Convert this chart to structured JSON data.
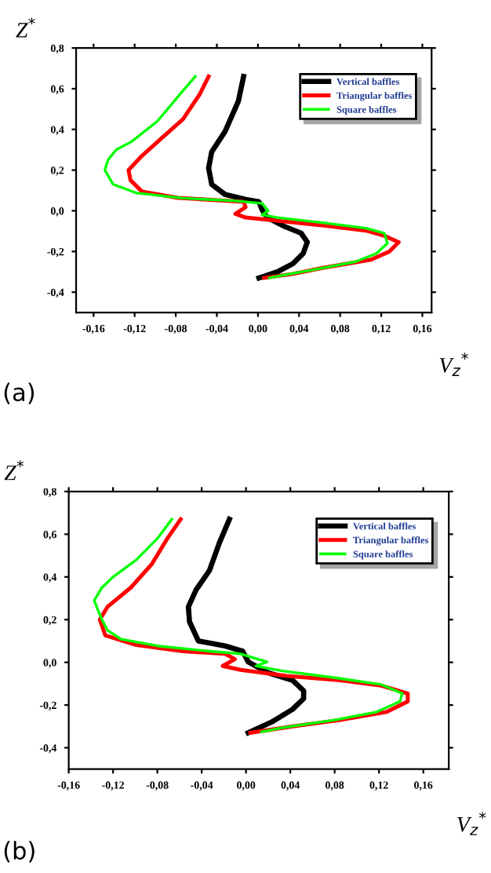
{
  "chart_data": [
    {
      "type": "line",
      "xlabel": "V$_{z}$$^{*}$",
      "ylabel": "Z$^{*}$",
      "annotations": [
        "(a)"
      ],
      "legend": "top right",
      "grid": false,
      "xlim": [
        -0.177,
        0.169
      ],
      "ylim": [
        -0.5,
        0.8
      ],
      "xticks": [
        {
          "value": -0.16,
          "label": "-0,16"
        },
        {
          "value": -0.12,
          "label": "-0,12"
        },
        {
          "value": -0.08,
          "label": "-0,08"
        },
        {
          "value": -0.04,
          "label": "-0,04"
        },
        {
          "value": 0,
          "label": "0,00"
        },
        {
          "value": 0.04,
          "label": "0,04"
        },
        {
          "value": 0.08,
          "label": "0,08"
        },
        {
          "value": 0.12,
          "label": "0,12"
        },
        {
          "value": 0.16,
          "label": "0,16"
        }
      ],
      "yticks": [
        {
          "value": -0.4,
          "label": "-0,4"
        },
        {
          "value": -0.2,
          "label": "-0,2"
        },
        {
          "value": 0,
          "label": "0,0"
        },
        {
          "value": 0.2,
          "label": "0,2"
        },
        {
          "value": 0.4,
          "label": "0,4"
        },
        {
          "value": 0.6,
          "label": "0,6"
        },
        {
          "value": 0.8,
          "label": "0,8"
        }
      ],
      "series": [
        {
          "name": "Vertical baffles",
          "color": "#000000",
          "x": [
            -0.014,
            -0.019,
            -0.032,
            -0.045,
            -0.048,
            -0.045,
            -0.032,
            -0.012,
            0.001,
            0.004,
            0.009,
            0.026,
            0.042,
            0.048,
            0.044,
            0.034,
            0.019,
            0.001
          ],
          "values": [
            0.66,
            0.54,
            0.39,
            0.29,
            0.21,
            0.13,
            0.08,
            0.056,
            0.044,
            0.005,
            -0.033,
            -0.077,
            -0.11,
            -0.154,
            -0.21,
            -0.26,
            -0.3,
            -0.33
          ]
        },
        {
          "name": "Triangular baffles",
          "color": "#ff0000",
          "x": [
            -0.048,
            -0.057,
            -0.073,
            -0.093,
            -0.113,
            -0.126,
            -0.124,
            -0.113,
            -0.078,
            -0.037,
            -0.014,
            -0.012,
            -0.022,
            -0.012,
            0.014,
            0.064,
            0.105,
            0.123,
            0.137,
            0.128,
            0.11,
            0.064,
            0.034,
            0.006
          ],
          "values": [
            0.66,
            0.57,
            0.45,
            0.36,
            0.27,
            0.2,
            0.15,
            0.095,
            0.064,
            0.051,
            0.044,
            0.018,
            -0.015,
            -0.033,
            -0.046,
            -0.072,
            -0.097,
            -0.123,
            -0.154,
            -0.2,
            -0.24,
            -0.28,
            -0.31,
            -0.33
          ]
        },
        {
          "name": "Square baffles",
          "color": "#00ff00",
          "x": [
            -0.061,
            -0.073,
            -0.098,
            -0.123,
            -0.138,
            -0.146,
            -0.149,
            -0.141,
            -0.118,
            -0.073,
            -0.022,
            0.004,
            0.01,
            0.004,
            0.019,
            0.064,
            0.105,
            0.123,
            0.126,
            0.115,
            0.095,
            0.054,
            0.026,
            0.011
          ],
          "values": [
            0.66,
            0.59,
            0.44,
            0.34,
            0.3,
            0.25,
            0.2,
            0.13,
            0.087,
            0.062,
            0.049,
            0.036,
            0.0,
            -0.02,
            -0.033,
            -0.059,
            -0.085,
            -0.11,
            -0.16,
            -0.21,
            -0.25,
            -0.29,
            -0.315,
            -0.33
          ]
        }
      ]
    },
    {
      "type": "line",
      "xlabel": "V$_{z}$$^{*}$",
      "ylabel": "Z$^{*}$",
      "annotations": [
        "(b)"
      ],
      "legend": "top right",
      "grid": false,
      "xlim": [
        -0.16,
        0.183
      ],
      "ylim": [
        -0.5,
        0.8
      ],
      "xticks": [
        {
          "value": -0.16,
          "label": "-0,16"
        },
        {
          "value": -0.12,
          "label": "-0,12"
        },
        {
          "value": -0.08,
          "label": "-0,08"
        },
        {
          "value": -0.04,
          "label": "-0,04"
        },
        {
          "value": 0,
          "label": "0,00"
        },
        {
          "value": 0.04,
          "label": "0,04"
        },
        {
          "value": 0.08,
          "label": "0,08"
        },
        {
          "value": 0.12,
          "label": "0,12"
        },
        {
          "value": 0.16,
          "label": "0,16"
        }
      ],
      "yticks": [
        {
          "value": -0.4,
          "label": "-0,4"
        },
        {
          "value": -0.2,
          "label": "-0,2"
        },
        {
          "value": 0,
          "label": "0,0"
        },
        {
          "value": 0.2,
          "label": "0,2"
        },
        {
          "value": 0.4,
          "label": "0,4"
        },
        {
          "value": 0.6,
          "label": "0,6"
        },
        {
          "value": 0.8,
          "label": "0,8"
        }
      ],
      "series": [
        {
          "name": "Vertical baffles",
          "color": "#000000",
          "x": [
            -0.015,
            -0.024,
            -0.033,
            -0.045,
            -0.052,
            -0.051,
            -0.043,
            -0.019,
            -0.003,
            0.002,
            0.019,
            0.042,
            0.052,
            0.052,
            0.042,
            0.023,
            0.002
          ],
          "values": [
            0.67,
            0.56,
            0.43,
            0.34,
            0.26,
            0.19,
            0.1,
            0.077,
            0.052,
            0.002,
            -0.047,
            -0.084,
            -0.133,
            -0.17,
            -0.22,
            -0.28,
            -0.33
          ]
        },
        {
          "name": "Triangular baffles",
          "color": "#ff0000",
          "x": [
            -0.059,
            -0.071,
            -0.085,
            -0.104,
            -0.125,
            -0.132,
            -0.127,
            -0.099,
            -0.057,
            -0.019,
            -0.01,
            -0.021,
            -0.005,
            0.037,
            0.085,
            0.122,
            0.146,
            0.146,
            0.127,
            0.085,
            0.042,
            0.004
          ],
          "values": [
            0.67,
            0.58,
            0.46,
            0.35,
            0.26,
            0.2,
            0.126,
            0.081,
            0.052,
            0.04,
            0.015,
            -0.017,
            -0.035,
            -0.064,
            -0.084,
            -0.109,
            -0.146,
            -0.183,
            -0.232,
            -0.27,
            -0.3,
            -0.33
          ]
        },
        {
          "name": "Square baffles",
          "color": "#00ff00",
          "x": [
            -0.067,
            -0.08,
            -0.099,
            -0.12,
            -0.13,
            -0.137,
            -0.134,
            -0.13,
            -0.125,
            -0.113,
            -0.08,
            -0.033,
            -0.005,
            0.019,
            0.009,
            0.033,
            0.08,
            0.122,
            0.141,
            0.139,
            0.118,
            0.08,
            0.033,
            0.014
          ],
          "values": [
            0.67,
            0.58,
            0.48,
            0.4,
            0.35,
            0.29,
            0.25,
            0.2,
            0.15,
            0.109,
            0.077,
            0.052,
            0.04,
            0.002,
            -0.017,
            -0.04,
            -0.072,
            -0.104,
            -0.146,
            -0.183,
            -0.232,
            -0.27,
            -0.306,
            -0.326
          ]
        }
      ]
    }
  ]
}
